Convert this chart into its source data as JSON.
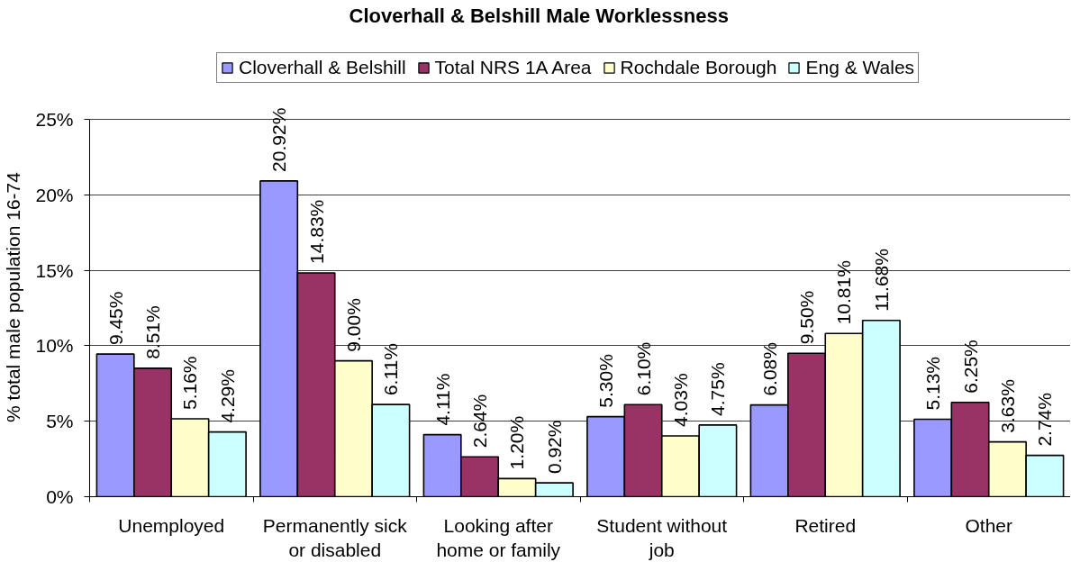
{
  "chart_data": {
    "type": "bar",
    "title": "Cloverhall & Belshill Male Worklessness",
    "ylabel": "% total male population 16-74",
    "categories": [
      "Unemployed",
      "Permanently sick or disabled",
      "Looking after home or family",
      "Student without job",
      "Retired",
      "Other"
    ],
    "series": [
      {
        "name": "Cloverhall & Belshill",
        "color": "#9999ff",
        "values": [
          9.45,
          20.92,
          4.11,
          5.3,
          6.08,
          5.13
        ],
        "value_labels": [
          "9.45%",
          "20.92%",
          "4.11%",
          "5.30%",
          "6.08%",
          "5.13%"
        ]
      },
      {
        "name": "Total NRS 1A Area",
        "color": "#993366",
        "values": [
          8.51,
          14.83,
          2.64,
          6.1,
          9.5,
          6.25
        ],
        "value_labels": [
          "8.51%",
          "14.83%",
          "2.64%",
          "6.10%",
          "9.50%",
          "6.25%"
        ]
      },
      {
        "name": "Rochdale Borough",
        "color": "#ffffcc",
        "values": [
          5.16,
          9.0,
          1.2,
          4.03,
          10.81,
          3.63
        ],
        "value_labels": [
          "5.16%",
          "9.00%",
          "1.20%",
          "4.03%",
          "10.81%",
          "3.63%"
        ]
      },
      {
        "name": "Eng & Wales",
        "color": "#ccffff",
        "values": [
          4.29,
          6.11,
          0.92,
          4.75,
          11.68,
          2.74
        ],
        "value_labels": [
          "4.29%",
          "6.11%",
          "0.92%",
          "4.75%",
          "11.68%",
          "2.74%"
        ]
      }
    ],
    "ylim": [
      0,
      25
    ],
    "yticks": [
      {
        "value": 0,
        "label": "0%"
      },
      {
        "value": 5,
        "label": "5%"
      },
      {
        "value": 10,
        "label": "10%"
      },
      {
        "value": 15,
        "label": "15%"
      },
      {
        "value": 20,
        "label": "20%"
      },
      {
        "value": 25,
        "label": "25%"
      }
    ],
    "grid": "y",
    "legend": "top"
  }
}
